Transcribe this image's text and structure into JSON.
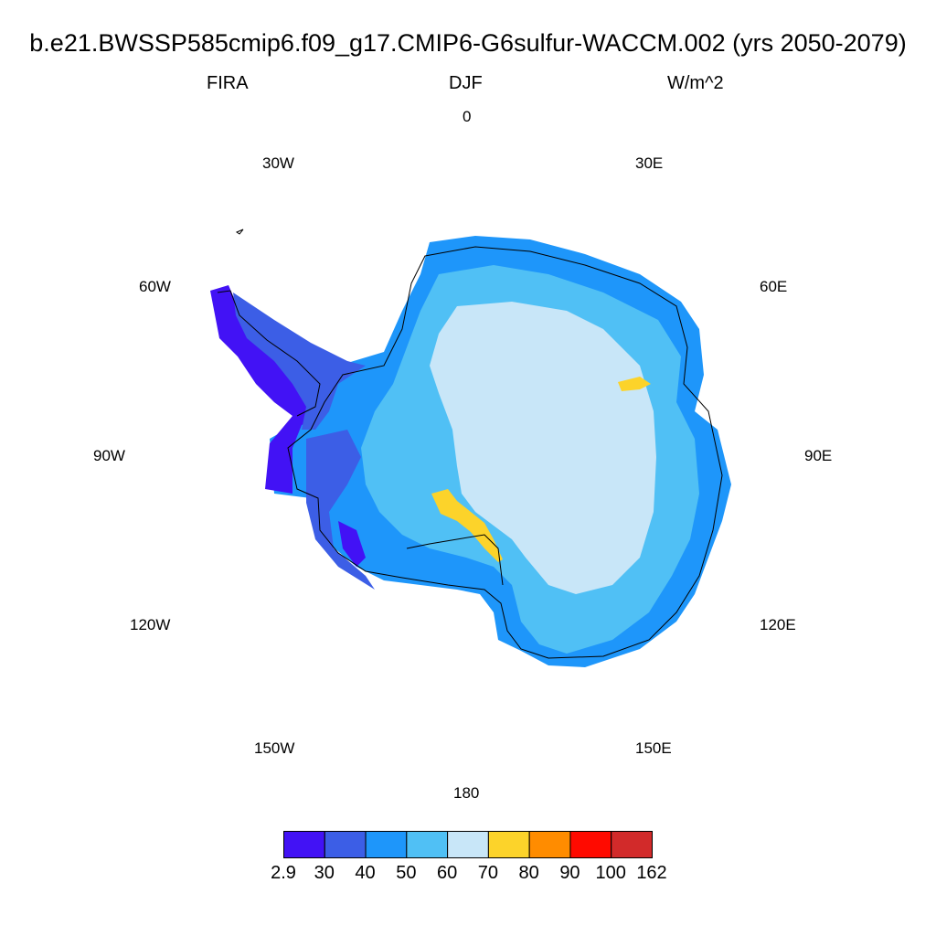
{
  "title": "b.e21.BWSSP585cmip6.f09_g17.CMIP6-G6sulfur-WACCM.002 (yrs 2050-2079)",
  "variable": "FIRA",
  "season": "DJF",
  "units": "W/m^2",
  "lon_labels": {
    "lon_0": "0",
    "lon_30e": "30E",
    "lon_60e": "60E",
    "lon_90e": "90E",
    "lon_120e": "120E",
    "lon_150e": "150E",
    "lon_180": "180",
    "lon_150w": "150W",
    "lon_120w": "120W",
    "lon_90w": "90W",
    "lon_60w": "60W",
    "lon_30w": "30W"
  },
  "colorbar": {
    "labels": [
      "2.9",
      "30",
      "40",
      "50",
      "60",
      "70",
      "80",
      "90",
      "100",
      "162"
    ],
    "colors": [
      "#4212f5",
      "#3c5ee6",
      "#1e96fa",
      "#50c0f5",
      "#c8e6f8",
      "#fcd32a",
      "#ff8c00",
      "#ff0a00",
      "#d22a2a"
    ]
  },
  "colors": {
    "c1": "#4212f5",
    "c2": "#3c5ee6",
    "c3": "#1e96fa",
    "c4": "#50c0f5",
    "c5": "#c8e6f8",
    "c6": "#fcd32a"
  }
}
